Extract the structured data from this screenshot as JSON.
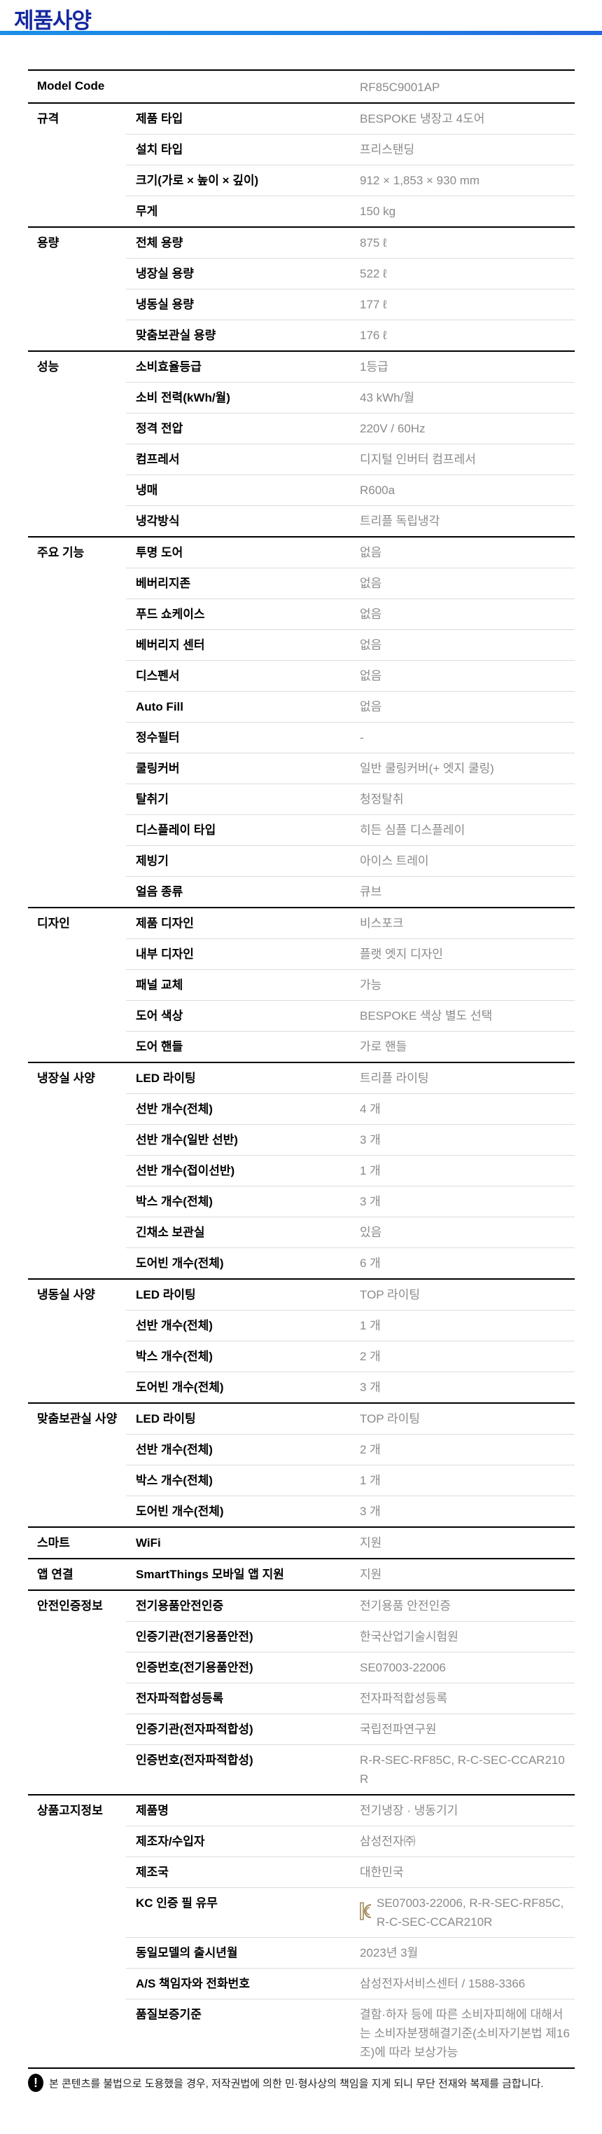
{
  "page": {
    "title": "제품사양"
  },
  "model": {
    "label": "Model Code",
    "value": "RF85C9001AP"
  },
  "groups": [
    {
      "category": "규격",
      "rows": [
        {
          "label": "제품 타입",
          "value": "BESPOKE 냉장고 4도어"
        },
        {
          "label": "설치 타입",
          "value": "프리스탠딩"
        },
        {
          "label": "크기(가로 × 높이 × 깊이)",
          "value": "912 × 1,853 × 930 mm"
        },
        {
          "label": "무게",
          "value": "150 kg"
        }
      ]
    },
    {
      "category": "용량",
      "rows": [
        {
          "label": "전체 용량",
          "value": "875 ℓ"
        },
        {
          "label": "냉장실 용량",
          "value": "522 ℓ"
        },
        {
          "label": "냉동실 용량",
          "value": "177 ℓ"
        },
        {
          "label": "맞춤보관실 용량",
          "value": "176 ℓ"
        }
      ]
    },
    {
      "category": "성능",
      "rows": [
        {
          "label": "소비효율등급",
          "value": "1등급"
        },
        {
          "label": "소비 전력(kWh/월)",
          "value": "43 kWh/월"
        },
        {
          "label": "정격 전압",
          "value": "220V / 60Hz"
        },
        {
          "label": "컴프레서",
          "value": "디지털 인버터 컴프레서"
        },
        {
          "label": "냉매",
          "value": "R600a"
        },
        {
          "label": "냉각방식",
          "value": "트리플 독립냉각"
        }
      ]
    },
    {
      "category": "주요 기능",
      "rows": [
        {
          "label": "투명 도어",
          "value": "없음"
        },
        {
          "label": "베버리지존",
          "value": "없음"
        },
        {
          "label": "푸드 쇼케이스",
          "value": "없음"
        },
        {
          "label": "베버리지 센터",
          "value": "없음"
        },
        {
          "label": "디스펜서",
          "value": "없음"
        },
        {
          "label": "Auto Fill",
          "value": "없음"
        },
        {
          "label": "정수필터",
          "value": "-"
        },
        {
          "label": "쿨링커버",
          "value": "일반 쿨링커버(+ 엣지 쿨링)"
        },
        {
          "label": "탈취기",
          "value": "청정탈취"
        },
        {
          "label": "디스플레이 타입",
          "value": "히든 심플 디스플레이"
        },
        {
          "label": "제빙기",
          "value": "아이스 트레이"
        },
        {
          "label": "얼음 종류",
          "value": "큐브"
        }
      ]
    },
    {
      "category": "디자인",
      "rows": [
        {
          "label": "제품 디자인",
          "value": "비스포크"
        },
        {
          "label": "내부 디자인",
          "value": "플랫 엣지 디자인"
        },
        {
          "label": "패널 교체",
          "value": "가능"
        },
        {
          "label": "도어 색상",
          "value": "BESPOKE 색상 별도 선택"
        },
        {
          "label": "도어 핸들",
          "value": "가로 핸들"
        }
      ]
    },
    {
      "category": "냉장실 사양",
      "rows": [
        {
          "label": "LED 라이팅",
          "value": "트리플 라이팅"
        },
        {
          "label": "선반 개수(전체)",
          "value": "4 개"
        },
        {
          "label": "선반 개수(일반 선반)",
          "value": "3 개"
        },
        {
          "label": "선반 개수(접이선반)",
          "value": "1 개"
        },
        {
          "label": "박스 개수(전체)",
          "value": "3 개"
        },
        {
          "label": "긴채소 보관실",
          "value": "있음"
        },
        {
          "label": "도어빈 개수(전체)",
          "value": "6 개"
        }
      ]
    },
    {
      "category": "냉동실 사양",
      "rows": [
        {
          "label": "LED 라이팅",
          "value": "TOP 라이팅"
        },
        {
          "label": "선반 개수(전체)",
          "value": "1 개"
        },
        {
          "label": "박스 개수(전체)",
          "value": "2 개"
        },
        {
          "label": "도어빈 개수(전체)",
          "value": "3 개"
        }
      ]
    },
    {
      "category": "맞춤보관실 사양",
      "rows": [
        {
          "label": "LED 라이팅",
          "value": "TOP 라이팅"
        },
        {
          "label": "선반 개수(전체)",
          "value": "2 개"
        },
        {
          "label": "박스 개수(전체)",
          "value": "1 개"
        },
        {
          "label": "도어빈 개수(전체)",
          "value": "3 개"
        }
      ]
    },
    {
      "category": "스마트",
      "rows": [
        {
          "label": "WiFi",
          "value": "지원"
        }
      ]
    },
    {
      "category": "앱 연결",
      "rows": [
        {
          "label": "SmartThings 모바일 앱 지원",
          "value": "지원"
        }
      ]
    },
    {
      "category": "안전인증정보",
      "rows": [
        {
          "label": "전기용품안전인증",
          "value": "전기용품 안전인증"
        },
        {
          "label": "인증기관(전기용품안전)",
          "value": "한국산업기술시험원"
        },
        {
          "label": "인증번호(전기용품안전)",
          "value": "SE07003-22006"
        },
        {
          "label": "전자파적합성등록",
          "value": "전자파적합성등록"
        },
        {
          "label": "인증기관(전자파적합성)",
          "value": "국립전파연구원"
        },
        {
          "label": "인증번호(전자파적합성)",
          "value": "R-R-SEC-RF85C, R-C-SEC-CCAR210R"
        }
      ]
    },
    {
      "category": "상품고지정보",
      "rows": [
        {
          "label": "제품명",
          "value": "전기냉장 · 냉동기기"
        },
        {
          "label": "제조자/수입자",
          "value": "삼성전자㈜"
        },
        {
          "label": "제조국",
          "value": "대한민국"
        },
        {
          "label": "KC 인증 필 유무",
          "value": "SE07003-22006, R-R-SEC-RF85C, R-C-SEC-CCAR210R",
          "icon": "kc-mark-icon"
        },
        {
          "label": "동일모델의 출시년월",
          "value": "2023년 3월"
        },
        {
          "label": "A/S 책임자와 전화번호",
          "value": "삼성전자서비스센터 / 1588-3366"
        },
        {
          "label": "품질보증기준",
          "value": "결함·하자 등에 따른 소비자피해에 대해서는 소비자분쟁해결기준(소비자기본법 제16조)에 따라 보상가능"
        }
      ]
    }
  ],
  "footer": {
    "icon": "exclamation-icon",
    "text": "본 콘텐츠를 불법으로 도용했을 경우, 저작권법에 의한 민·형사상의 책임을 지게 되니 무단 전재와 복제를 금합니다."
  },
  "colors": {
    "title": "#1428a0",
    "value_text": "#8a8a8a",
    "kc_mark": "#a08a5a"
  }
}
